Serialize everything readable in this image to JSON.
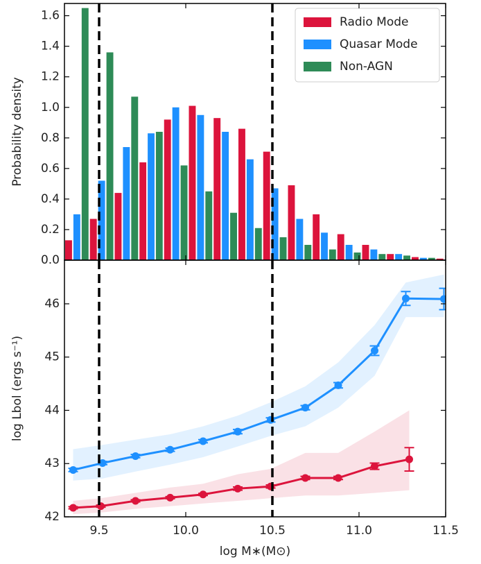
{
  "chart_data": [
    {
      "type": "histogram",
      "ylabel": "Probability density",
      "bins": [
        9.3,
        9.443,
        9.586,
        9.729,
        9.871,
        10.014,
        10.157,
        10.3,
        10.443,
        10.586,
        10.729,
        10.871,
        11.014,
        11.157,
        11.3,
        11.443,
        11.586
      ],
      "series": [
        {
          "name": "Radio Mode",
          "color": "#dc143c",
          "values": [
            0.13,
            0.27,
            0.44,
            0.64,
            0.92,
            1.01,
            0.93,
            0.86,
            0.71,
            0.49,
            0.3,
            0.17,
            0.1,
            0.04,
            0.02,
            0.01
          ]
        },
        {
          "name": "Quasar Mode",
          "color": "#1e90ff",
          "values": [
            0.3,
            0.52,
            0.74,
            0.83,
            1.0,
            0.95,
            0.84,
            0.66,
            0.47,
            0.27,
            0.18,
            0.1,
            0.07,
            0.04,
            0.015,
            0.005
          ]
        },
        {
          "name": "Non-AGN",
          "color": "#2e8b57",
          "values": [
            1.65,
            1.36,
            1.07,
            0.84,
            0.62,
            0.45,
            0.31,
            0.21,
            0.15,
            0.1,
            0.07,
            0.05,
            0.04,
            0.03,
            0.015,
            0.005
          ]
        }
      ],
      "xlim": [
        9.3,
        11.5
      ],
      "ylim": [
        0,
        1.68
      ],
      "yticks": [
        {
          "value": 0,
          "label": "0.0"
        },
        0.2,
        0.4,
        0.6,
        0.8,
        {
          "value": 1,
          "label": "1.0"
        },
        1.2,
        1.4,
        1.6
      ],
      "vlines": [
        9.5,
        10.5
      ],
      "legend": "upper right"
    },
    {
      "type": "line",
      "xlabel": "log M∗(M⊙)",
      "ylabel": "log Lbol (ergs s⁻¹)",
      "series": [
        {
          "color": "#1e90ff",
          "x": [
            9.35,
            9.52,
            9.71,
            9.91,
            10.1,
            10.3,
            10.49,
            10.69,
            10.88,
            11.09,
            11.27,
            11.49
          ],
          "values": [
            42.88,
            43.01,
            43.14,
            43.26,
            43.42,
            43.6,
            43.82,
            44.05,
            44.47,
            45.12,
            46.1,
            46.09
          ],
          "errors": [
            0.03,
            0.03,
            0.03,
            0.03,
            0.03,
            0.04,
            0.04,
            0.04,
            0.05,
            0.09,
            0.13,
            0.2
          ],
          "band_upper": [
            43.27,
            43.35,
            43.45,
            43.55,
            43.7,
            43.9,
            44.15,
            44.45,
            44.9,
            45.6,
            46.4,
            46.55
          ],
          "band_lower": [
            42.68,
            42.72,
            42.85,
            42.98,
            43.12,
            43.32,
            43.52,
            43.7,
            44.05,
            44.65,
            45.75,
            45.75
          ]
        },
        {
          "color": "#dc143c",
          "x": [
            9.35,
            9.51,
            9.71,
            9.91,
            10.1,
            10.3,
            10.49,
            10.69,
            10.88,
            11.09,
            11.29
          ],
          "values": [
            42.17,
            42.2,
            42.3,
            42.36,
            42.42,
            42.53,
            42.57,
            42.73,
            42.73,
            42.95,
            43.08
          ],
          "errors": [
            0.02,
            0.02,
            0.02,
            0.02,
            0.02,
            0.03,
            0.03,
            0.03,
            0.03,
            0.06,
            0.22
          ],
          "band_upper": [
            42.3,
            42.35,
            42.45,
            42.55,
            42.62,
            42.8,
            42.9,
            43.2,
            43.2,
            43.6,
            44.0
          ],
          "band_lower": [
            42.05,
            42.08,
            42.15,
            42.2,
            42.25,
            42.3,
            42.35,
            42.4,
            42.4,
            42.45,
            42.5
          ]
        }
      ],
      "xlim": [
        9.3,
        11.5
      ],
      "ylim": [
        42,
        46.82
      ],
      "xticks": [
        9.5,
        {
          "value": 10,
          "label": "10.0"
        },
        10.5,
        {
          "value": 11,
          "label": "11.0"
        },
        11.5
      ],
      "yticks": [
        42,
        43,
        44,
        45,
        46
      ],
      "vlines": [
        9.5,
        10.5
      ]
    }
  ]
}
